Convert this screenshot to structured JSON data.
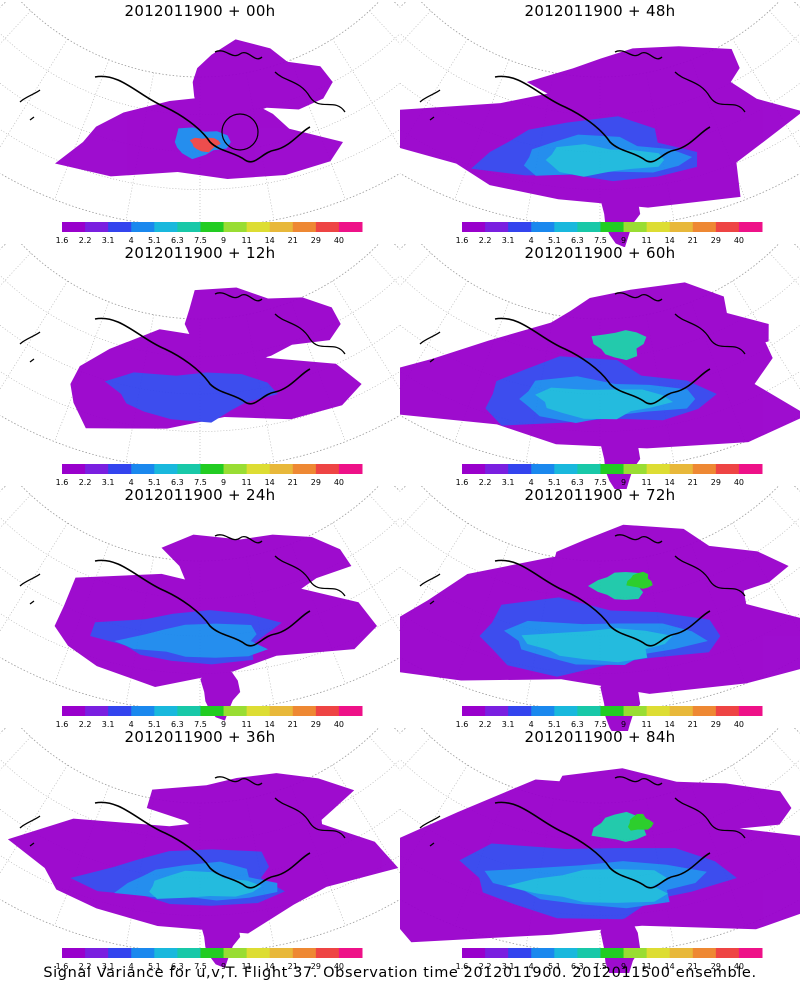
{
  "panels": [
    {
      "title": "2012011900  + 00h",
      "stage": 0
    },
    {
      "title": "2012011900  + 48h",
      "stage": 4
    },
    {
      "title": "2012011900  + 12h",
      "stage": 1
    },
    {
      "title": "2012011900  + 60h",
      "stage": 5
    },
    {
      "title": "2012011900  + 24h",
      "stage": 2
    },
    {
      "title": "2012011900  + 72h",
      "stage": 6
    },
    {
      "title": "2012011900  + 36h",
      "stage": 3
    },
    {
      "title": "2012011900  + 84h",
      "stage": 7
    }
  ],
  "colorbar": {
    "labels": [
      "1.6",
      "2.2",
      "3.1",
      "4",
      "5.1",
      "6.3",
      "7.5",
      "9",
      "11",
      "14",
      "21",
      "29",
      "40"
    ],
    "colors": [
      "#9900cc",
      "#7a1fe0",
      "#3344ee",
      "#1a88ee",
      "#19b8dd",
      "#18c8a8",
      "#22cc22",
      "#99dd33",
      "#dddd33",
      "#e8b83a",
      "#ee8833",
      "#ee4444",
      "#ee1188"
    ]
  },
  "caption": "Signal Variance for u,v,T. Flight 37. Observation time 2012011900. 2012011500 ensemble."
}
